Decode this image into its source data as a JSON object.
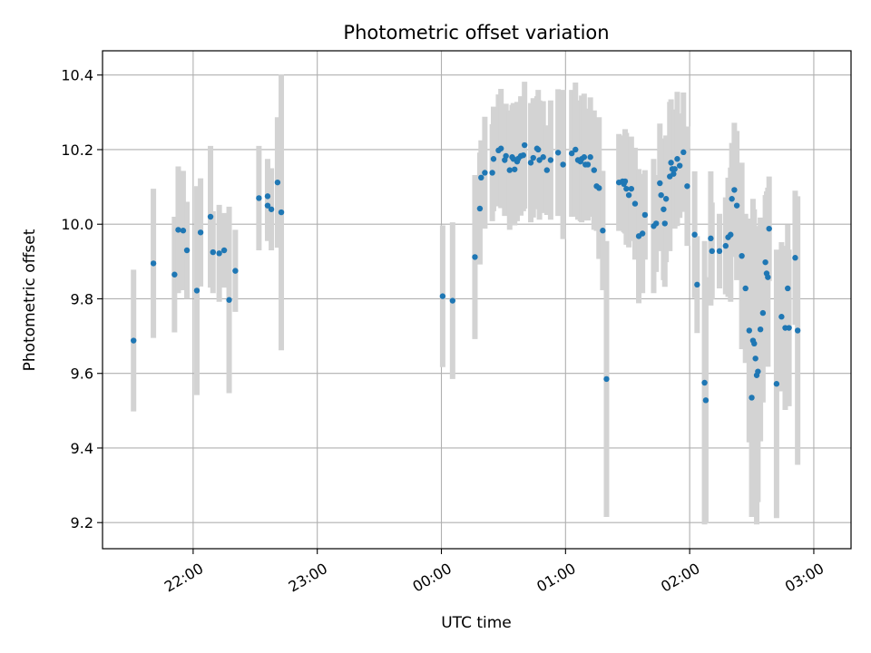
{
  "chart_data": {
    "type": "scatter",
    "title": "Photometric offset variation",
    "xlabel": "UTC time",
    "ylabel": "Photometric offset",
    "x_unit": "hours since 21:00 UTC",
    "xlim": [
      21.27,
      27.3
    ],
    "ylim": [
      9.13,
      10.465
    ],
    "x_ticks": [
      {
        "value": 22,
        "label": "22:00"
      },
      {
        "value": 23,
        "label": "23:00"
      },
      {
        "value": 24,
        "label": "00:00"
      },
      {
        "value": 25,
        "label": "01:00"
      },
      {
        "value": 26,
        "label": "02:00"
      },
      {
        "value": 27,
        "label": "03:00"
      }
    ],
    "y_ticks": [
      9.2,
      9.4,
      9.6,
      9.8,
      10.0,
      10.2,
      10.4
    ],
    "y_tick_labels": [
      "9.2",
      "9.4",
      "9.6",
      "9.8",
      "10.0",
      "10.2",
      "10.4"
    ],
    "grid": true,
    "point_color": "#1f77b4",
    "errorbar_color": "#d3d3d3",
    "points": [
      [
        21.52,
        9.688,
        0.19
      ],
      [
        21.68,
        9.895,
        0.2
      ],
      [
        21.85,
        9.865,
        0.155
      ],
      [
        21.88,
        9.985,
        0.17
      ],
      [
        21.92,
        9.983,
        0.16
      ],
      [
        21.95,
        9.93,
        0.13
      ],
      [
        22.03,
        9.822,
        0.28
      ],
      [
        22.06,
        9.978,
        0.145
      ],
      [
        22.14,
        10.02,
        0.19
      ],
      [
        22.16,
        9.925,
        0.11
      ],
      [
        22.21,
        9.922,
        0.13
      ],
      [
        22.25,
        9.93,
        0.1
      ],
      [
        22.29,
        9.797,
        0.25
      ],
      [
        22.34,
        9.875,
        0.11
      ],
      [
        22.53,
        10.07,
        0.14
      ],
      [
        22.6,
        10.075,
        0.1
      ],
      [
        22.6,
        10.05,
        0.095
      ],
      [
        22.63,
        10.04,
        0.11
      ],
      [
        22.68,
        10.112,
        0.175
      ],
      [
        22.71,
        10.032,
        0.37
      ],
      [
        24.01,
        9.807,
        0.19
      ],
      [
        24.09,
        9.795,
        0.21
      ],
      [
        24.27,
        9.912,
        0.22
      ],
      [
        24.31,
        10.042,
        0.15
      ],
      [
        24.32,
        10.125,
        0.1
      ],
      [
        24.35,
        10.138,
        0.15
      ],
      [
        24.41,
        10.138,
        0.13
      ],
      [
        24.42,
        10.175,
        0.14
      ],
      [
        24.46,
        10.198,
        0.15
      ],
      [
        24.48,
        10.203,
        0.16
      ],
      [
        24.51,
        10.172,
        0.15
      ],
      [
        24.52,
        10.183,
        0.14
      ],
      [
        24.55,
        10.145,
        0.16
      ],
      [
        24.57,
        10.18,
        0.14
      ],
      [
        24.58,
        10.175,
        0.15
      ],
      [
        24.59,
        10.147,
        0.15
      ],
      [
        24.61,
        10.168,
        0.16
      ],
      [
        24.62,
        10.176,
        0.15
      ],
      [
        24.64,
        10.183,
        0.16
      ],
      [
        24.66,
        10.185,
        0.15
      ],
      [
        24.67,
        10.212,
        0.17
      ],
      [
        24.72,
        10.165,
        0.16
      ],
      [
        24.74,
        10.178,
        0.16
      ],
      [
        24.77,
        10.203,
        0.14
      ],
      [
        24.78,
        10.2,
        0.16
      ],
      [
        24.79,
        10.172,
        0.16
      ],
      [
        24.82,
        10.18,
        0.15
      ],
      [
        24.85,
        10.145,
        0.12
      ],
      [
        24.88,
        10.172,
        0.16
      ],
      [
        24.94,
        10.192,
        0.17
      ],
      [
        24.98,
        10.16,
        0.2
      ],
      [
        25.05,
        10.19,
        0.17
      ],
      [
        25.08,
        10.2,
        0.18
      ],
      [
        25.1,
        10.172,
        0.16
      ],
      [
        25.12,
        10.168,
        0.16
      ],
      [
        25.13,
        10.175,
        0.17
      ],
      [
        25.15,
        10.18,
        0.17
      ],
      [
        25.16,
        10.16,
        0.14
      ],
      [
        25.18,
        10.16,
        0.15
      ],
      [
        25.2,
        10.18,
        0.16
      ],
      [
        25.23,
        10.145,
        0.16
      ],
      [
        25.25,
        10.102,
        0.12
      ],
      [
        25.27,
        10.097,
        0.19
      ],
      [
        25.3,
        9.983,
        0.16
      ],
      [
        25.33,
        9.585,
        0.37
      ],
      [
        25.43,
        10.112,
        0.13
      ],
      [
        25.46,
        10.115,
        0.12
      ],
      [
        25.47,
        10.108,
        0.13
      ],
      [
        25.48,
        10.115,
        0.14
      ],
      [
        25.49,
        10.095,
        0.15
      ],
      [
        25.51,
        10.078,
        0.14
      ],
      [
        25.53,
        10.095,
        0.14
      ],
      [
        25.56,
        10.055,
        0.15
      ],
      [
        25.59,
        9.968,
        0.18
      ],
      [
        25.62,
        9.975,
        0.16
      ],
      [
        25.64,
        10.025,
        0.12
      ],
      [
        25.71,
        9.995,
        0.18
      ],
      [
        25.73,
        10.002,
        0.13
      ],
      [
        25.76,
        10.11,
        0.16
      ],
      [
        25.77,
        10.078,
        0.15
      ],
      [
        25.79,
        10.04,
        0.19
      ],
      [
        25.8,
        10.002,
        0.17
      ],
      [
        25.81,
        10.068,
        0.17
      ],
      [
        25.84,
        10.128,
        0.2
      ],
      [
        25.85,
        10.165,
        0.17
      ],
      [
        25.86,
        10.148,
        0.15
      ],
      [
        25.87,
        10.135,
        0.13
      ],
      [
        25.88,
        10.148,
        0.16
      ],
      [
        25.9,
        10.175,
        0.18
      ],
      [
        25.92,
        10.157,
        0.14
      ],
      [
        25.95,
        10.193,
        0.16
      ],
      [
        25.98,
        10.102,
        0.16
      ],
      [
        26.04,
        9.972,
        0.17
      ],
      [
        26.06,
        9.838,
        0.13
      ],
      [
        26.12,
        9.575,
        0.38
      ],
      [
        26.13,
        9.528,
        0.33
      ],
      [
        26.17,
        9.962,
        0.18
      ],
      [
        26.18,
        9.928,
        0.13
      ],
      [
        26.24,
        9.928,
        0.1
      ],
      [
        26.29,
        9.942,
        0.13
      ],
      [
        26.31,
        9.965,
        0.16
      ],
      [
        26.33,
        9.972,
        0.18
      ],
      [
        26.34,
        10.068,
        0.15
      ],
      [
        26.36,
        10.092,
        0.18
      ],
      [
        26.38,
        10.05,
        0.2
      ],
      [
        26.42,
        9.915,
        0.25
      ],
      [
        26.45,
        9.828,
        0.2
      ],
      [
        26.48,
        9.715,
        0.3
      ],
      [
        26.5,
        9.535,
        0.32
      ],
      [
        26.51,
        9.688,
        0.38
      ],
      [
        26.52,
        9.68,
        0.36
      ],
      [
        26.53,
        9.64,
        0.27
      ],
      [
        26.54,
        9.595,
        0.4
      ],
      [
        26.55,
        9.605,
        0.35
      ],
      [
        26.57,
        9.718,
        0.3
      ],
      [
        26.59,
        9.762,
        0.24
      ],
      [
        26.61,
        9.898,
        0.18
      ],
      [
        26.62,
        9.868,
        0.22
      ],
      [
        26.63,
        9.858,
        0.24
      ],
      [
        26.64,
        9.988,
        0.14
      ],
      [
        26.7,
        9.572,
        0.36
      ],
      [
        26.74,
        9.752,
        0.2
      ],
      [
        26.77,
        9.722,
        0.22
      ],
      [
        26.79,
        9.828,
        0.17
      ],
      [
        26.8,
        9.722,
        0.21
      ],
      [
        26.85,
        9.91,
        0.18
      ],
      [
        26.87,
        9.715,
        0.36
      ]
    ]
  }
}
